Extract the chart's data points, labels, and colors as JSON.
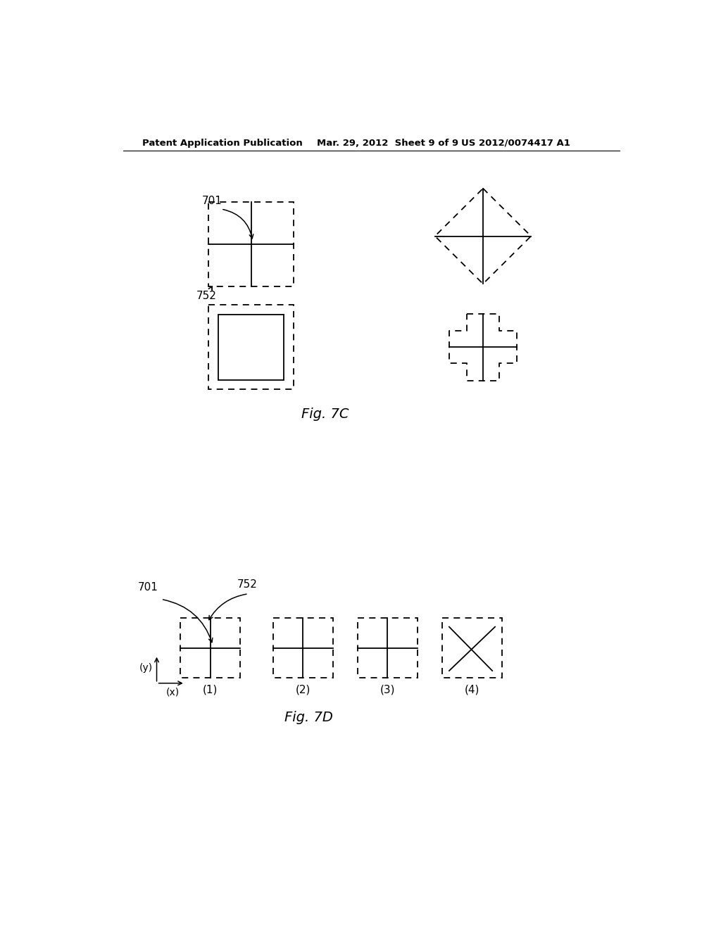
{
  "bg_color": "#ffffff",
  "header_left": "Patent Application Publication",
  "header_mid": "Mar. 29, 2012  Sheet 9 of 9",
  "header_right": "US 2012/0074417 A1",
  "fig7c_label": "Fig. 7C",
  "fig7d_label": "Fig. 7D",
  "label_701_top": "701",
  "label_752_top": "752",
  "label_701_bot": "701",
  "label_752_bot": "752",
  "shape_labels": [
    "(1)",
    "(2)",
    "(3)",
    "(4)"
  ]
}
